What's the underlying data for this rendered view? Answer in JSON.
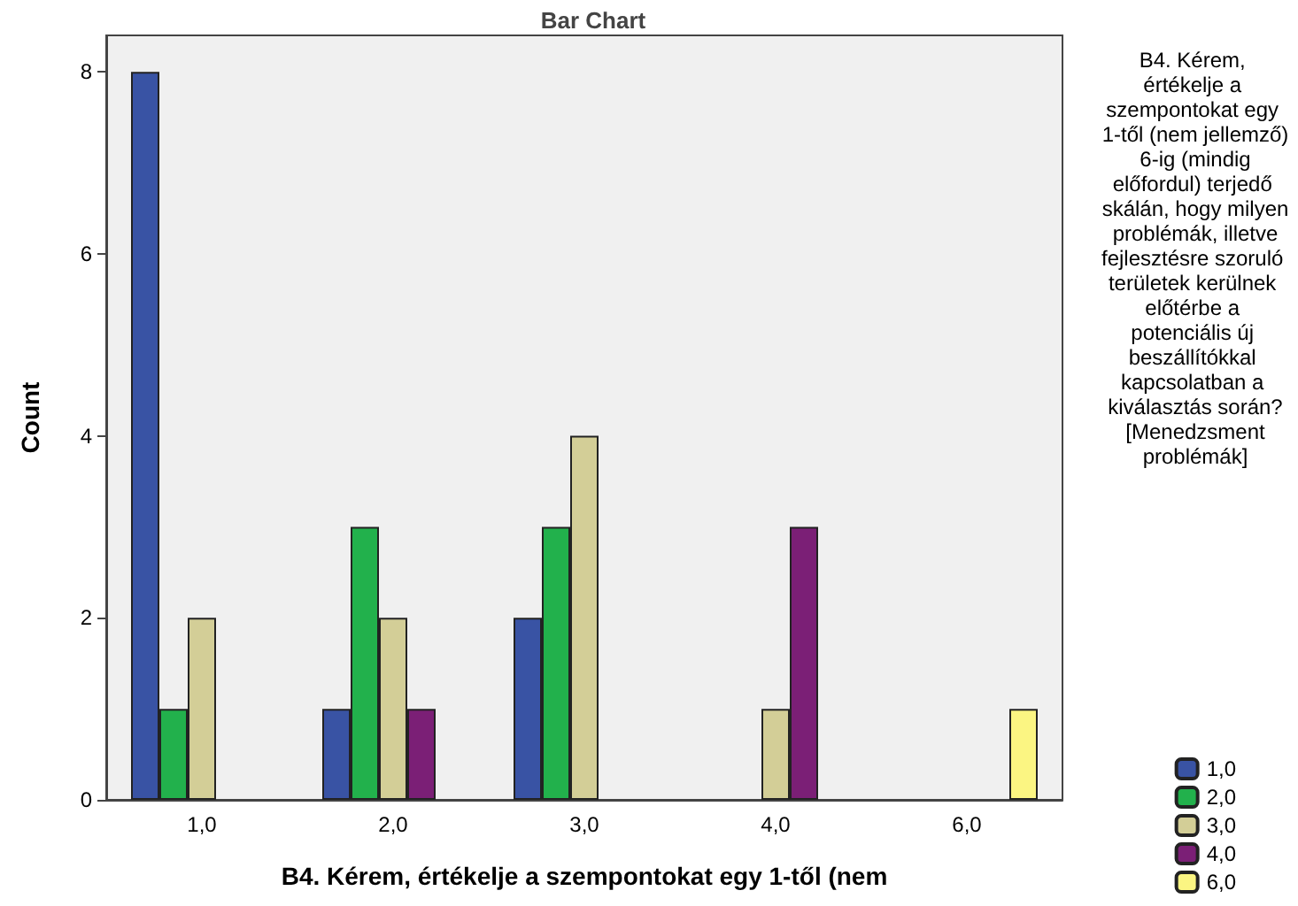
{
  "chart_data": {
    "type": "bar",
    "title": "Bar Chart",
    "xlabel": "B4. Kérem, értékelje a szempontokat egy 1-től (nem",
    "ylabel": "Count",
    "legend_title": "B4. Kérem, értékelje a szempontokat egy 1-től (nem jellemző) 6-ig (mindig előfordul) terjedő skálán, hogy milyen problémák, illetve fejlesztésre szoruló területek kerülnek előtérbe a potenciális új beszállítókkal kapcsolatban a kiválasztás során? [Menedzsment problémák]",
    "categories": [
      "1,0",
      "2,0",
      "3,0",
      "4,0",
      "6,0"
    ],
    "series": [
      {
        "name": "1,0",
        "color": "#3953a4",
        "values": [
          8,
          1,
          2,
          null,
          null
        ]
      },
      {
        "name": "2,0",
        "color": "#22b14c",
        "values": [
          1,
          3,
          3,
          null,
          null
        ]
      },
      {
        "name": "3,0",
        "color": "#d3ce97",
        "values": [
          2,
          2,
          4,
          1,
          null
        ]
      },
      {
        "name": "4,0",
        "color": "#7b1f76",
        "values": [
          null,
          1,
          null,
          3,
          null
        ]
      },
      {
        "name": "6,0",
        "color": "#fbf582",
        "values": [
          null,
          null,
          null,
          null,
          1
        ]
      }
    ],
    "ylim": [
      0,
      8.4
    ],
    "yticks": [
      0,
      2,
      4,
      6,
      8
    ],
    "grid": false,
    "legend": "right"
  }
}
